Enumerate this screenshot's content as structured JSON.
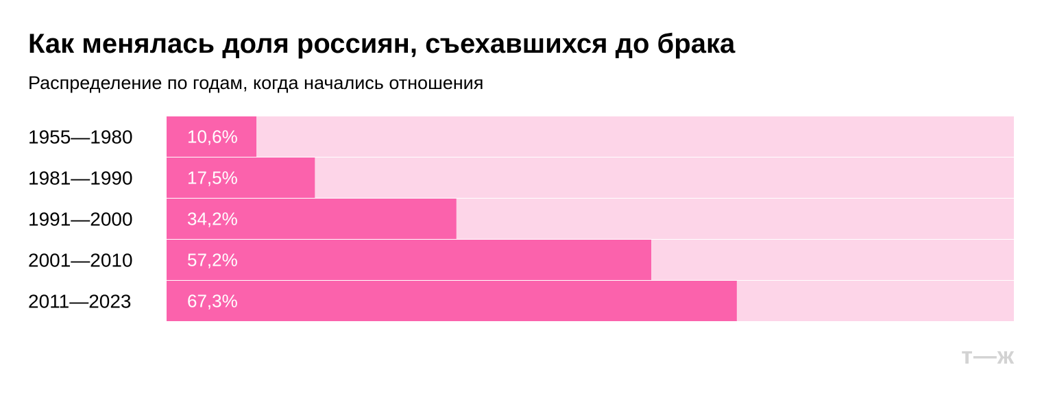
{
  "chart_data": {
    "type": "bar",
    "orientation": "horizontal",
    "stacked_to_100": true,
    "title": "Как менялась доля россиян, съехавшихся до брака",
    "subtitle": "Распределение по годам, когда начались отношения",
    "categories": [
      "1955—1980",
      "1981—1990",
      "1991—2000",
      "2001—2010",
      "2011—2023"
    ],
    "values": [
      10.6,
      17.5,
      34.2,
      57.2,
      67.3
    ],
    "value_labels": [
      "10,6%",
      "17,5%",
      "34,2%",
      "57,2%",
      "67,3%"
    ],
    "xlim": [
      0,
      100
    ],
    "grid": false,
    "legend": "none"
  },
  "colors": {
    "bar": "#fb62ac",
    "track": "#fdd5e8",
    "logo": "#d3d3d3"
  },
  "brand": "т—ж"
}
